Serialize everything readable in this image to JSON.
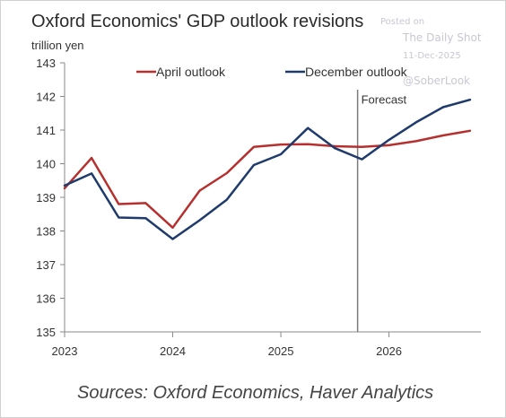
{
  "header": {
    "title": "Oxford Economics' GDP outlook revisions",
    "unit": "trillion yen"
  },
  "watermark": {
    "posted": "Posted on",
    "site": "The Daily Shot",
    "date": "11-Dec-2025",
    "handle": "@SoberLook"
  },
  "footer": {
    "source": "Sources: Oxford Economics, Haver Analytics"
  },
  "chart_data": {
    "type": "line",
    "ylim": [
      135,
      143
    ],
    "yticks": [
      135,
      136,
      137,
      138,
      139,
      140,
      141,
      142,
      143
    ],
    "xlim": [
      2023.0,
      2026.85
    ],
    "xticks": [
      {
        "label": "2023",
        "x": 2023.0
      },
      {
        "label": "2024",
        "x": 2024.0
      },
      {
        "label": "2025",
        "x": 2025.0
      },
      {
        "label": "2026",
        "x": 2026.0
      }
    ],
    "grid": false,
    "legend_position": "top-left",
    "forecast": {
      "label": "Forecast",
      "x": 2025.71
    },
    "series": [
      {
        "name": "April outlook",
        "color": "#b5302e",
        "x": [
          2023.0,
          2023.25,
          2023.5,
          2023.75,
          2024.0,
          2024.25,
          2024.5,
          2024.75,
          2025.0,
          2025.25,
          2025.5,
          2025.75,
          2026.0,
          2026.25,
          2026.5,
          2026.75
        ],
        "values": [
          139.27,
          140.17,
          138.8,
          138.83,
          138.1,
          139.2,
          139.72,
          140.5,
          140.57,
          140.58,
          140.52,
          140.5,
          140.55,
          140.67,
          140.84,
          140.98
        ]
      },
      {
        "name": "December outlook",
        "color": "#1f3b6b",
        "x": [
          2023.0,
          2023.25,
          2023.5,
          2023.75,
          2024.0,
          2024.25,
          2024.5,
          2024.75,
          2025.0,
          2025.25,
          2025.5,
          2025.75,
          2026.0,
          2026.25,
          2026.5,
          2026.75
        ],
        "values": [
          139.35,
          139.71,
          138.4,
          138.38,
          137.76,
          138.32,
          138.93,
          139.96,
          140.28,
          141.06,
          140.46,
          140.13,
          140.71,
          141.23,
          141.68,
          141.9
        ]
      }
    ]
  }
}
